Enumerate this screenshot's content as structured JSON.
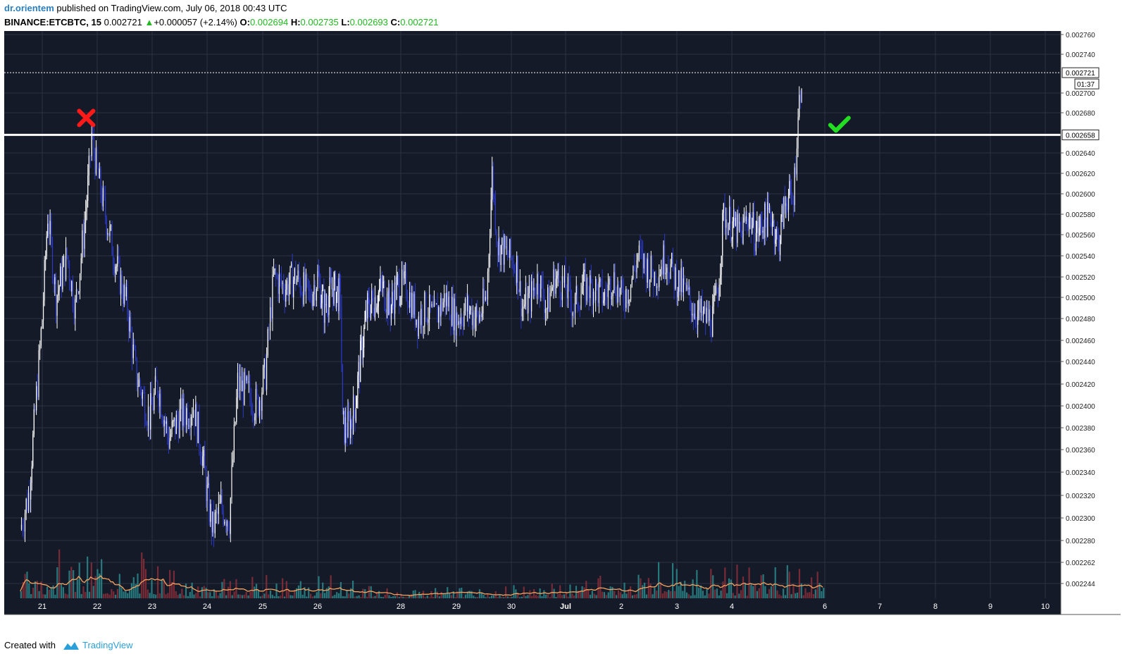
{
  "header": {
    "author": "dr.orientem",
    "published_text": "published on TradingView.com, July 06, 2018 00:43 UTC",
    "symbol": "BINANCE:ETCBTC, 15",
    "last": "0.002721",
    "change_arrow": "▲",
    "change": "+0.000057 (+2.14%)",
    "o_label": "O:",
    "o_value": "0.002694",
    "h_label": "H:",
    "h_value": "0.002735",
    "l_label": "L:",
    "l_value": "0.002693",
    "c_label": "C:",
    "c_value": "0.002721"
  },
  "footer": {
    "created_with": "Created with",
    "brand": "TradingView",
    "logo_icon": "tradingview-logo-icon"
  },
  "colors": {
    "background": "#151a28",
    "grid": "#2c3244",
    "up_candle": "#ffffff",
    "down_candle": "#2b3ac9",
    "volume_up": "#2a8a8c",
    "volume_down": "#8a2f3a",
    "volume_ma": "#f5a25d",
    "resistance": "#ffffff",
    "cross": "#ff1a1a",
    "check": "#22dd22"
  },
  "chart_data": {
    "type": "candlestick",
    "symbol": "BINANCE:ETCBTC",
    "interval": "15",
    "x_tick_labels": [
      "21",
      "22",
      "23",
      "24",
      "25",
      "26",
      "28",
      "29",
      "30",
      "Jul",
      "2",
      "3",
      "4",
      "6",
      "7",
      "8",
      "9",
      "10"
    ],
    "y_tick_labels": [
      "0.002760",
      "0.002740",
      "0.002700",
      "0.002680",
      "0.002640",
      "0.002620",
      "0.002600",
      "0.002580",
      "0.002560",
      "0.002540",
      "0.002520",
      "0.002500",
      "0.002480",
      "0.002460",
      "0.002440",
      "0.002420",
      "0.002400",
      "0.002380",
      "0.002360",
      "0.002340",
      "0.002320",
      "0.002300",
      "0.002280",
      "0.002262",
      "0.002244"
    ],
    "y_range": [
      0.002244,
      0.00276
    ],
    "price_path": [
      [
        20.6,
        0.00229
      ],
      [
        20.75,
        0.00232
      ],
      [
        20.85,
        0.00238
      ],
      [
        21.0,
        0.00248
      ],
      [
        21.1,
        0.00258
      ],
      [
        21.25,
        0.0025
      ],
      [
        21.45,
        0.00254
      ],
      [
        21.6,
        0.00249
      ],
      [
        21.75,
        0.00256
      ],
      [
        21.85,
        0.00262
      ],
      [
        21.9,
        0.002658
      ],
      [
        22.0,
        0.00262
      ],
      [
        22.15,
        0.00258
      ],
      [
        22.35,
        0.00253
      ],
      [
        22.55,
        0.00249
      ],
      [
        22.7,
        0.00243
      ],
      [
        22.95,
        0.00239
      ],
      [
        23.1,
        0.00242
      ],
      [
        23.3,
        0.00237
      ],
      [
        23.5,
        0.00239
      ],
      [
        23.75,
        0.0024
      ],
      [
        23.9,
        0.00236
      ],
      [
        24.0,
        0.00232
      ],
      [
        24.1,
        0.00229
      ],
      [
        24.25,
        0.00231
      ],
      [
        24.4,
        0.0023
      ],
      [
        24.55,
        0.00242
      ],
      [
        24.75,
        0.00241
      ],
      [
        24.9,
        0.0024
      ],
      [
        25.05,
        0.00243
      ],
      [
        25.2,
        0.00252
      ],
      [
        25.4,
        0.00251
      ],
      [
        25.6,
        0.00252
      ],
      [
        25.85,
        0.0025
      ],
      [
        26.0,
        0.00252
      ],
      [
        26.15,
        0.00249
      ],
      [
        26.35,
        0.00251
      ],
      [
        26.55,
        0.0025
      ],
      [
        26.6,
        0.00238
      ],
      [
        26.75,
        0.00238
      ],
      [
        26.9,
        0.0024
      ],
      [
        27.05,
        0.00245
      ],
      [
        27.2,
        0.00249
      ],
      [
        27.4,
        0.0025
      ],
      [
        27.55,
        0.00251
      ],
      [
        27.75,
        0.00249
      ],
      [
        27.9,
        0.00251
      ],
      [
        28.1,
        0.00251
      ],
      [
        28.3,
        0.00248
      ],
      [
        28.45,
        0.00249
      ],
      [
        28.6,
        0.00248
      ],
      [
        28.8,
        0.0025
      ],
      [
        29.0,
        0.00248
      ],
      [
        29.2,
        0.00249
      ],
      [
        29.4,
        0.00248
      ],
      [
        29.55,
        0.0025
      ],
      [
        29.65,
        0.00262
      ],
      [
        29.75,
        0.00255
      ],
      [
        29.95,
        0.00254
      ],
      [
        30.1,
        0.00253
      ],
      [
        30.2,
        0.00249
      ],
      [
        30.35,
        0.0025
      ],
      [
        30.5,
        0.00252
      ],
      [
        30.65,
        0.00249
      ],
      [
        30.8,
        0.00252
      ],
      [
        31.0,
        0.00251
      ],
      [
        31.15,
        0.00249
      ],
      [
        31.3,
        0.00251
      ],
      [
        31.5,
        0.00251
      ],
      [
        31.7,
        0.0025
      ],
      [
        31.85,
        0.00252
      ],
      [
        32.0,
        0.0025
      ],
      [
        32.15,
        0.00251
      ],
      [
        32.3,
        0.00254
      ],
      [
        32.45,
        0.00253
      ],
      [
        32.6,
        0.00252
      ],
      [
        32.8,
        0.00254
      ],
      [
        32.95,
        0.00252
      ],
      [
        33.1,
        0.00251
      ],
      [
        33.3,
        0.00249
      ],
      [
        33.5,
        0.00248
      ],
      [
        33.65,
        0.00248
      ],
      [
        33.75,
        0.00251
      ],
      [
        33.85,
        0.00258
      ],
      [
        34.0,
        0.00257
      ],
      [
        34.2,
        0.00256
      ],
      [
        34.35,
        0.00258
      ],
      [
        34.5,
        0.00256
      ],
      [
        34.65,
        0.00257
      ],
      [
        34.85,
        0.00258
      ],
      [
        35.0,
        0.00255
      ],
      [
        35.1,
        0.00258
      ],
      [
        35.2,
        0.0026
      ],
      [
        35.3,
        0.00259
      ],
      [
        35.35,
        0.002615
      ],
      [
        35.4,
        0.002658
      ],
      [
        35.45,
        0.00269
      ],
      [
        35.5,
        0.002721
      ]
    ],
    "last_price": "0.002721",
    "countdown": "01:37",
    "resistance_level": "0.002658",
    "annotations": [
      "red cross at rejection near 0.002658 (22)",
      "green check at breakout above 0.002658 (6 Jul)"
    ],
    "volume_pane": true,
    "grid": true
  }
}
